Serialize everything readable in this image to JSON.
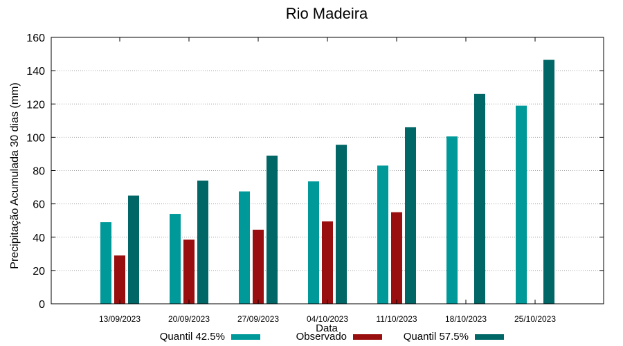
{
  "chart_data": {
    "type": "bar",
    "title": "Rio Madeira",
    "xlabel": "Data",
    "ylabel": "Precipitação Acumulada 30 dias (mm)",
    "ylim": [
      0,
      160
    ],
    "yticks": [
      0,
      20,
      40,
      60,
      80,
      100,
      120,
      140,
      160
    ],
    "grid": true,
    "categories": [
      "13/09/2023",
      "20/09/2023",
      "27/09/2023",
      "04/10/2023",
      "11/10/2023",
      "18/10/2023",
      "25/10/2023"
    ],
    "series": [
      {
        "name": "Quantil 42.5%",
        "color": "#009999",
        "values": [
          49,
          54,
          67.5,
          73.5,
          83,
          100.5,
          119
        ]
      },
      {
        "name": "Observado",
        "color": "#990f0f",
        "values": [
          29,
          38.5,
          44.5,
          49.5,
          55,
          null,
          null
        ]
      },
      {
        "name": "Quantil 57.5%",
        "color": "#006666",
        "values": [
          65,
          74,
          89,
          95.5,
          106,
          126,
          146.5
        ]
      }
    ],
    "legend_position": "bottom"
  }
}
